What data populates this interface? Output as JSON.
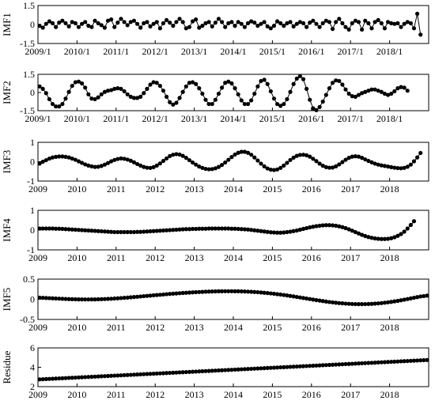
{
  "chart_data": [
    {
      "type": "line",
      "ylabel": "IMF1",
      "ylim": [
        -1.5,
        1.5
      ],
      "yticks": [
        "1.5",
        "0",
        "-1.5"
      ],
      "yticks_values": [
        1.5,
        0,
        -1.5
      ],
      "xticks": [
        "2009/1",
        "2010/1",
        "2011/1",
        "2012/1",
        "2013/1",
        "2014/1",
        "2015/1",
        "2016/1",
        "2017/1",
        "2018/1"
      ],
      "x_start": "2009/1",
      "x_end": "2018/12",
      "y": [
        -0.1,
        -0.25,
        0.05,
        0.25,
        0.1,
        -0.2,
        0.15,
        0.3,
        0.1,
        -0.15,
        0.2,
        0.1,
        -0.2,
        0.05,
        0.2,
        -0.1,
        -0.2,
        0.3,
        0.1,
        -0.05,
        -0.25,
        0.3,
        0.4,
        -0.2,
        0.15,
        0.45,
        0.2,
        -0.05,
        0.2,
        0.3,
        0.05,
        -0.25,
        0.1,
        0.2,
        -0.15,
        0.05,
        0.2,
        -0.3,
        0.1,
        0.35,
        0.15,
        -0.1,
        0.2,
        0.45,
        0.2,
        -0.3,
        -0.2,
        0.25,
        0.4,
        -0.25,
        -0.1,
        0.1,
        0.2,
        -0.15,
        0.15,
        0.45,
        0.2,
        -0.2,
        0.1,
        0.2,
        -0.1,
        0.2,
        0.05,
        -0.2,
        0.1,
        0.25,
        0.15,
        -0.1,
        0.05,
        0.2,
        -0.15,
        -0.3,
        -0.1,
        0.25,
        0.1,
        -0.1,
        0.1,
        0.2,
        -0.15,
        0.05,
        0.2,
        0.1,
        -0.2,
        0.15,
        0.3,
        0.05,
        -0.2,
        0.1,
        0.3,
        0.2,
        -0.35,
        0.2,
        0.45,
        0.1,
        -0.2,
        -0.4,
        0.1,
        0.3,
        0.2,
        -0.4,
        0.3,
        0.1,
        -0.3,
        0.2,
        0.35,
        0.1,
        -0.3,
        0.2,
        0.1,
        0.05,
        0.1,
        -0.2,
        0.05,
        0.2,
        0.1,
        -0.3,
        0.85,
        -0.8
      ]
    },
    {
      "type": "line",
      "ylabel": "IMF2",
      "ylim": [
        -1.5,
        1.5
      ],
      "yticks": [
        "1.5",
        "0",
        "-1.5"
      ],
      "yticks_values": [
        1.5,
        0,
        -1.5
      ],
      "xticks": [
        "2009/1",
        "2010/1",
        "2011/1",
        "2012/1",
        "2013/1",
        "2014/1",
        "2015/1",
        "2016/1",
        "2017/1",
        "2018/1"
      ],
      "x_start": "2009/1",
      "x_end": "2018/12",
      "y": [
        0.5,
        0.3,
        -0.05,
        -0.55,
        -0.95,
        -1.15,
        -1.15,
        -0.95,
        -0.5,
        0.05,
        0.55,
        0.85,
        0.9,
        0.75,
        0.4,
        -0.15,
        -0.5,
        -0.55,
        -0.4,
        -0.15,
        0.05,
        0.15,
        0.2,
        0.3,
        0.35,
        0.3,
        0.1,
        -0.15,
        -0.35,
        -0.45,
        -0.45,
        -0.35,
        -0.05,
        0.3,
        0.65,
        0.85,
        0.8,
        0.55,
        0.15,
        -0.35,
        -0.8,
        -1.0,
        -0.85,
        -0.45,
        0.05,
        0.5,
        0.8,
        0.85,
        0.7,
        0.35,
        -0.1,
        -0.6,
        -0.95,
        -0.95,
        -0.6,
        -0.1,
        0.4,
        0.8,
        0.9,
        0.75,
        0.35,
        -0.15,
        -0.65,
        -0.95,
        -0.95,
        -0.65,
        -0.1,
        0.5,
        0.95,
        1.05,
        0.7,
        0.1,
        -0.5,
        -0.95,
        -1.1,
        -0.95,
        -0.55,
        0.05,
        0.7,
        1.15,
        1.35,
        1.1,
        0.3,
        -0.6,
        -1.3,
        -1.45,
        -1.2,
        -0.75,
        -0.2,
        0.35,
        0.8,
        1.0,
        0.95,
        0.65,
        0.25,
        -0.1,
        -0.3,
        -0.35,
        -0.2,
        -0.05,
        0.05,
        0.15,
        0.25,
        0.25,
        0.15,
        0.05,
        -0.1,
        -0.2,
        -0.1,
        0.1,
        0.35,
        0.45,
        0.4,
        0.15
      ]
    },
    {
      "type": "line",
      "ylabel": "IMF3",
      "ylim": [
        -1,
        1
      ],
      "yticks": [
        "1",
        "0",
        "-1"
      ],
      "yticks_values": [
        1,
        0,
        -1
      ],
      "xticks": [
        "2009",
        "2010",
        "2011",
        "2012",
        "2013",
        "2014",
        "2015",
        "2016",
        "2017",
        "2018"
      ],
      "x_start": "2009",
      "x_end": "2018.9",
      "y": [
        -0.1,
        0,
        0.08,
        0.16,
        0.22,
        0.25,
        0.27,
        0.27,
        0.25,
        0.22,
        0.16,
        0.1,
        0.02,
        -0.06,
        -0.14,
        -0.2,
        -0.24,
        -0.27,
        -0.26,
        -0.22,
        -0.15,
        -0.07,
        0.02,
        0.09,
        0.14,
        0.17,
        0.15,
        0.11,
        0.05,
        -0.03,
        -0.12,
        -0.2,
        -0.27,
        -0.31,
        -0.32,
        -0.28,
        -0.2,
        -0.09,
        0.04,
        0.17,
        0.29,
        0.36,
        0.39,
        0.37,
        0.3,
        0.2,
        0.08,
        -0.04,
        -0.15,
        -0.25,
        -0.32,
        -0.37,
        -0.39,
        -0.38,
        -0.34,
        -0.27,
        -0.17,
        -0.04,
        0.1,
        0.24,
        0.37,
        0.46,
        0.51,
        0.51,
        0.46,
        0.36,
        0.22,
        0.06,
        -0.1,
        -0.24,
        -0.35,
        -0.41,
        -0.43,
        -0.4,
        -0.32,
        -0.2,
        -0.06,
        0.09,
        0.21,
        0.3,
        0.35,
        0.36,
        0.33,
        0.26,
        0.15,
        0.03,
        -0.1,
        -0.21,
        -0.28,
        -0.31,
        -0.3,
        -0.24,
        -0.14,
        -0.02,
        0.1,
        0.2,
        0.26,
        0.28,
        0.26,
        0.2,
        0.12,
        0.04,
        -0.03,
        -0.1,
        -0.15,
        -0.19,
        -0.22,
        -0.25,
        -0.28,
        -0.31,
        -0.33,
        -0.34,
        -0.32,
        -0.26,
        -0.15,
        0.02,
        0.22,
        0.45
      ]
    },
    {
      "type": "line",
      "ylabel": "IMF4",
      "ylim": [
        -1,
        1
      ],
      "yticks": [
        "1",
        "0",
        "-1"
      ],
      "yticks_values": [
        1,
        0,
        -1
      ],
      "xticks": [
        "2009",
        "2010",
        "2011",
        "2012",
        "2013",
        "2014",
        "2015",
        "2016",
        "2017",
        "2018"
      ],
      "x_start": "2009",
      "x_end": "2018.9",
      "y": [
        0.08,
        0.08,
        0.08,
        0.08,
        0.08,
        0.07,
        0.07,
        0.06,
        0.05,
        0.04,
        0.03,
        0.02,
        0.01,
        0,
        -0.01,
        -0.02,
        -0.03,
        -0.04,
        -0.05,
        -0.06,
        -0.07,
        -0.08,
        -0.09,
        -0.1,
        -0.1,
        -0.1,
        -0.1,
        -0.1,
        -0.1,
        -0.1,
        -0.09,
        -0.09,
        -0.08,
        -0.07,
        -0.06,
        -0.05,
        -0.04,
        -0.03,
        -0.02,
        -0.01,
        0,
        0.01,
        0.02,
        0.03,
        0.04,
        0.05,
        0.05,
        0.06,
        0.06,
        0.07,
        0.07,
        0.07,
        0.08,
        0.08,
        0.08,
        0.08,
        0.08,
        0.08,
        0.08,
        0.07,
        0.07,
        0.06,
        0.05,
        0.04,
        0.03,
        0.01,
        -0.01,
        -0.03,
        -0.05,
        -0.07,
        -0.09,
        -0.11,
        -0.12,
        -0.13,
        -0.13,
        -0.12,
        -0.1,
        -0.08,
        -0.05,
        -0.02,
        0.02,
        0.06,
        0.1,
        0.14,
        0.17,
        0.2,
        0.22,
        0.24,
        0.25,
        0.25,
        0.24,
        0.22,
        0.19,
        0.15,
        0.1,
        0.04,
        -0.03,
        -0.1,
        -0.17,
        -0.24,
        -0.3,
        -0.35,
        -0.39,
        -0.42,
        -0.44,
        -0.45,
        -0.45,
        -0.44,
        -0.41,
        -0.36,
        -0.29,
        -0.2,
        -0.08,
        0.08,
        0.26,
        0.45
      ]
    },
    {
      "type": "line",
      "ylabel": "IMF5",
      "ylim": [
        -0.5,
        0.5
      ],
      "yticks": [
        "0.5",
        "0",
        "-0.5"
      ],
      "yticks_values": [
        0.5,
        0,
        -0.5
      ],
      "xticks": [
        "2009",
        "2010",
        "2011",
        "2012",
        "2013",
        "2014",
        "2015",
        "2016",
        "2017",
        "2018"
      ],
      "x_start": "2009",
      "x_end": "2018.9",
      "y": [
        0.04,
        0.036,
        0.032,
        0.028,
        0.024,
        0.02,
        0.016,
        0.012,
        0.008,
        0.005,
        0.002,
        0,
        -0.002,
        -0.003,
        -0.004,
        -0.004,
        -0.003,
        -0.002,
        0,
        0.003,
        0.006,
        0.01,
        0.014,
        0.019,
        0.024,
        0.03,
        0.036,
        0.042,
        0.049,
        0.056,
        0.063,
        0.07,
        0.077,
        0.084,
        0.091,
        0.098,
        0.105,
        0.112,
        0.119,
        0.126,
        0.133,
        0.139,
        0.145,
        0.151,
        0.157,
        0.162,
        0.167,
        0.172,
        0.176,
        0.18,
        0.184,
        0.188,
        0.191,
        0.194,
        0.196,
        0.198,
        0.199,
        0.2,
        0.2,
        0.2,
        0.199,
        0.198,
        0.196,
        0.193,
        0.19,
        0.186,
        0.181,
        0.175,
        0.169,
        0.162,
        0.154,
        0.146,
        0.137,
        0.127,
        0.117,
        0.106,
        0.095,
        0.083,
        0.071,
        0.058,
        0.045,
        0.032,
        0.019,
        0.006,
        -0.007,
        -0.02,
        -0.032,
        -0.044,
        -0.056,
        -0.067,
        -0.077,
        -0.086,
        -0.094,
        -0.101,
        -0.107,
        -0.112,
        -0.116,
        -0.119,
        -0.12,
        -0.12,
        -0.119,
        -0.117,
        -0.113,
        -0.108,
        -0.102,
        -0.094,
        -0.085,
        -0.075,
        -0.064,
        -0.052,
        -0.039,
        -0.025,
        -0.01,
        0.006,
        0.022,
        0.038,
        0.054,
        0.07,
        0.08,
        0.09
      ]
    },
    {
      "type": "line",
      "ylabel": "Residue",
      "ylim": [
        2,
        6
      ],
      "yticks": [
        "6",
        "4",
        "2"
      ],
      "yticks_values": [
        6,
        4,
        2
      ],
      "xticks": [
        "2009",
        "2010",
        "2011",
        "2012",
        "2013",
        "2014",
        "2015",
        "2016",
        "2017",
        "2018"
      ],
      "x_start": "2009",
      "x_end": "2018.9",
      "y_start": 2.75,
      "y_end": 4.75,
      "n_points": 120
    }
  ]
}
